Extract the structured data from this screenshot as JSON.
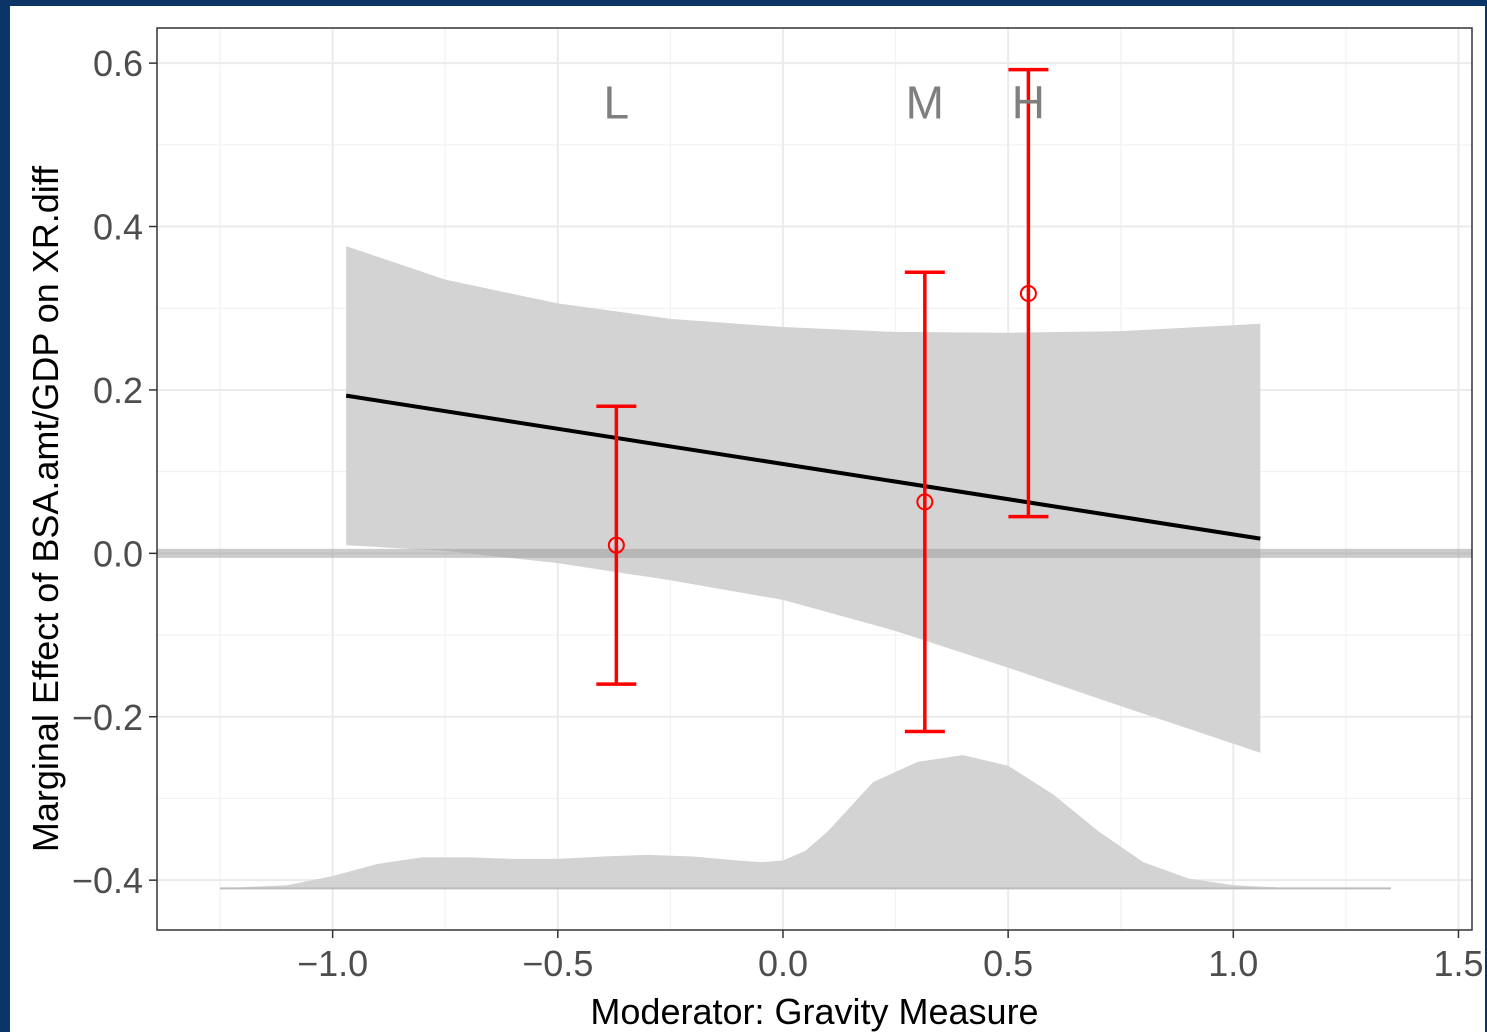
{
  "chart_data": {
    "type": "line",
    "title": "",
    "xlabel": "Moderator: Gravity Measure",
    "ylabel": "Marginal Effect of BSA.amt/GDP on XR.diff",
    "xlim": [
      -1.39,
      1.53
    ],
    "ylim": [
      -0.461,
      0.643
    ],
    "x_ticks": [
      -1.0,
      -0.5,
      0.0,
      0.5,
      1.0,
      1.5
    ],
    "x_tick_labels": [
      "−1.0",
      "−0.5",
      "0.0",
      "0.5",
      "1.0",
      "1.5"
    ],
    "y_ticks": [
      -0.4,
      -0.2,
      0.0,
      0.2,
      0.4,
      0.6
    ],
    "y_tick_labels": [
      "−0.4",
      "−0.2",
      "0.0",
      "0.2",
      "0.4",
      "0.6"
    ],
    "grid": true,
    "zero_line": 0.0,
    "marginal_effect_line": {
      "x": [
        -0.97,
        1.06
      ],
      "y": [
        0.193,
        0.018
      ],
      "color": "#000000"
    },
    "confidence_band": {
      "x": [
        -0.97,
        -0.75,
        -0.5,
        -0.25,
        0.0,
        0.25,
        0.5,
        0.75,
        1.06
      ],
      "upper": [
        0.376,
        0.335,
        0.306,
        0.287,
        0.277,
        0.271,
        0.27,
        0.272,
        0.281
      ],
      "lower": [
        0.01,
        0.003,
        -0.012,
        -0.033,
        -0.057,
        -0.095,
        -0.14,
        -0.187,
        -0.244
      ],
      "color": "#d3d3d3"
    },
    "binned_estimates": [
      {
        "label": "L",
        "x": -0.37,
        "estimate": 0.01,
        "ci_low": -0.16,
        "ci_high": 0.18
      },
      {
        "label": "M",
        "x": 0.315,
        "estimate": 0.063,
        "ci_low": -0.218,
        "ci_high": 0.344
      },
      {
        "label": "H",
        "x": 0.545,
        "estimate": 0.318,
        "ci_low": 0.045,
        "ci_high": 0.592
      }
    ],
    "bin_label_y": 0.553,
    "estimate_color": "#ff0000",
    "density": {
      "baseline": -0.41,
      "x": [
        -1.25,
        -1.1,
        -1.0,
        -0.9,
        -0.8,
        -0.7,
        -0.6,
        -0.5,
        -0.4,
        -0.3,
        -0.2,
        -0.1,
        -0.05,
        0.0,
        0.05,
        0.1,
        0.2,
        0.3,
        0.4,
        0.5,
        0.6,
        0.7,
        0.8,
        0.9,
        1.0,
        1.1,
        1.2,
        1.35
      ],
      "height": [
        0.0,
        0.004,
        0.015,
        0.03,
        0.038,
        0.038,
        0.036,
        0.036,
        0.039,
        0.041,
        0.039,
        0.034,
        0.032,
        0.034,
        0.046,
        0.07,
        0.13,
        0.155,
        0.163,
        0.15,
        0.115,
        0.07,
        0.032,
        0.012,
        0.004,
        0.001,
        0.0,
        0.0
      ],
      "color": "#d3d3d3"
    }
  }
}
